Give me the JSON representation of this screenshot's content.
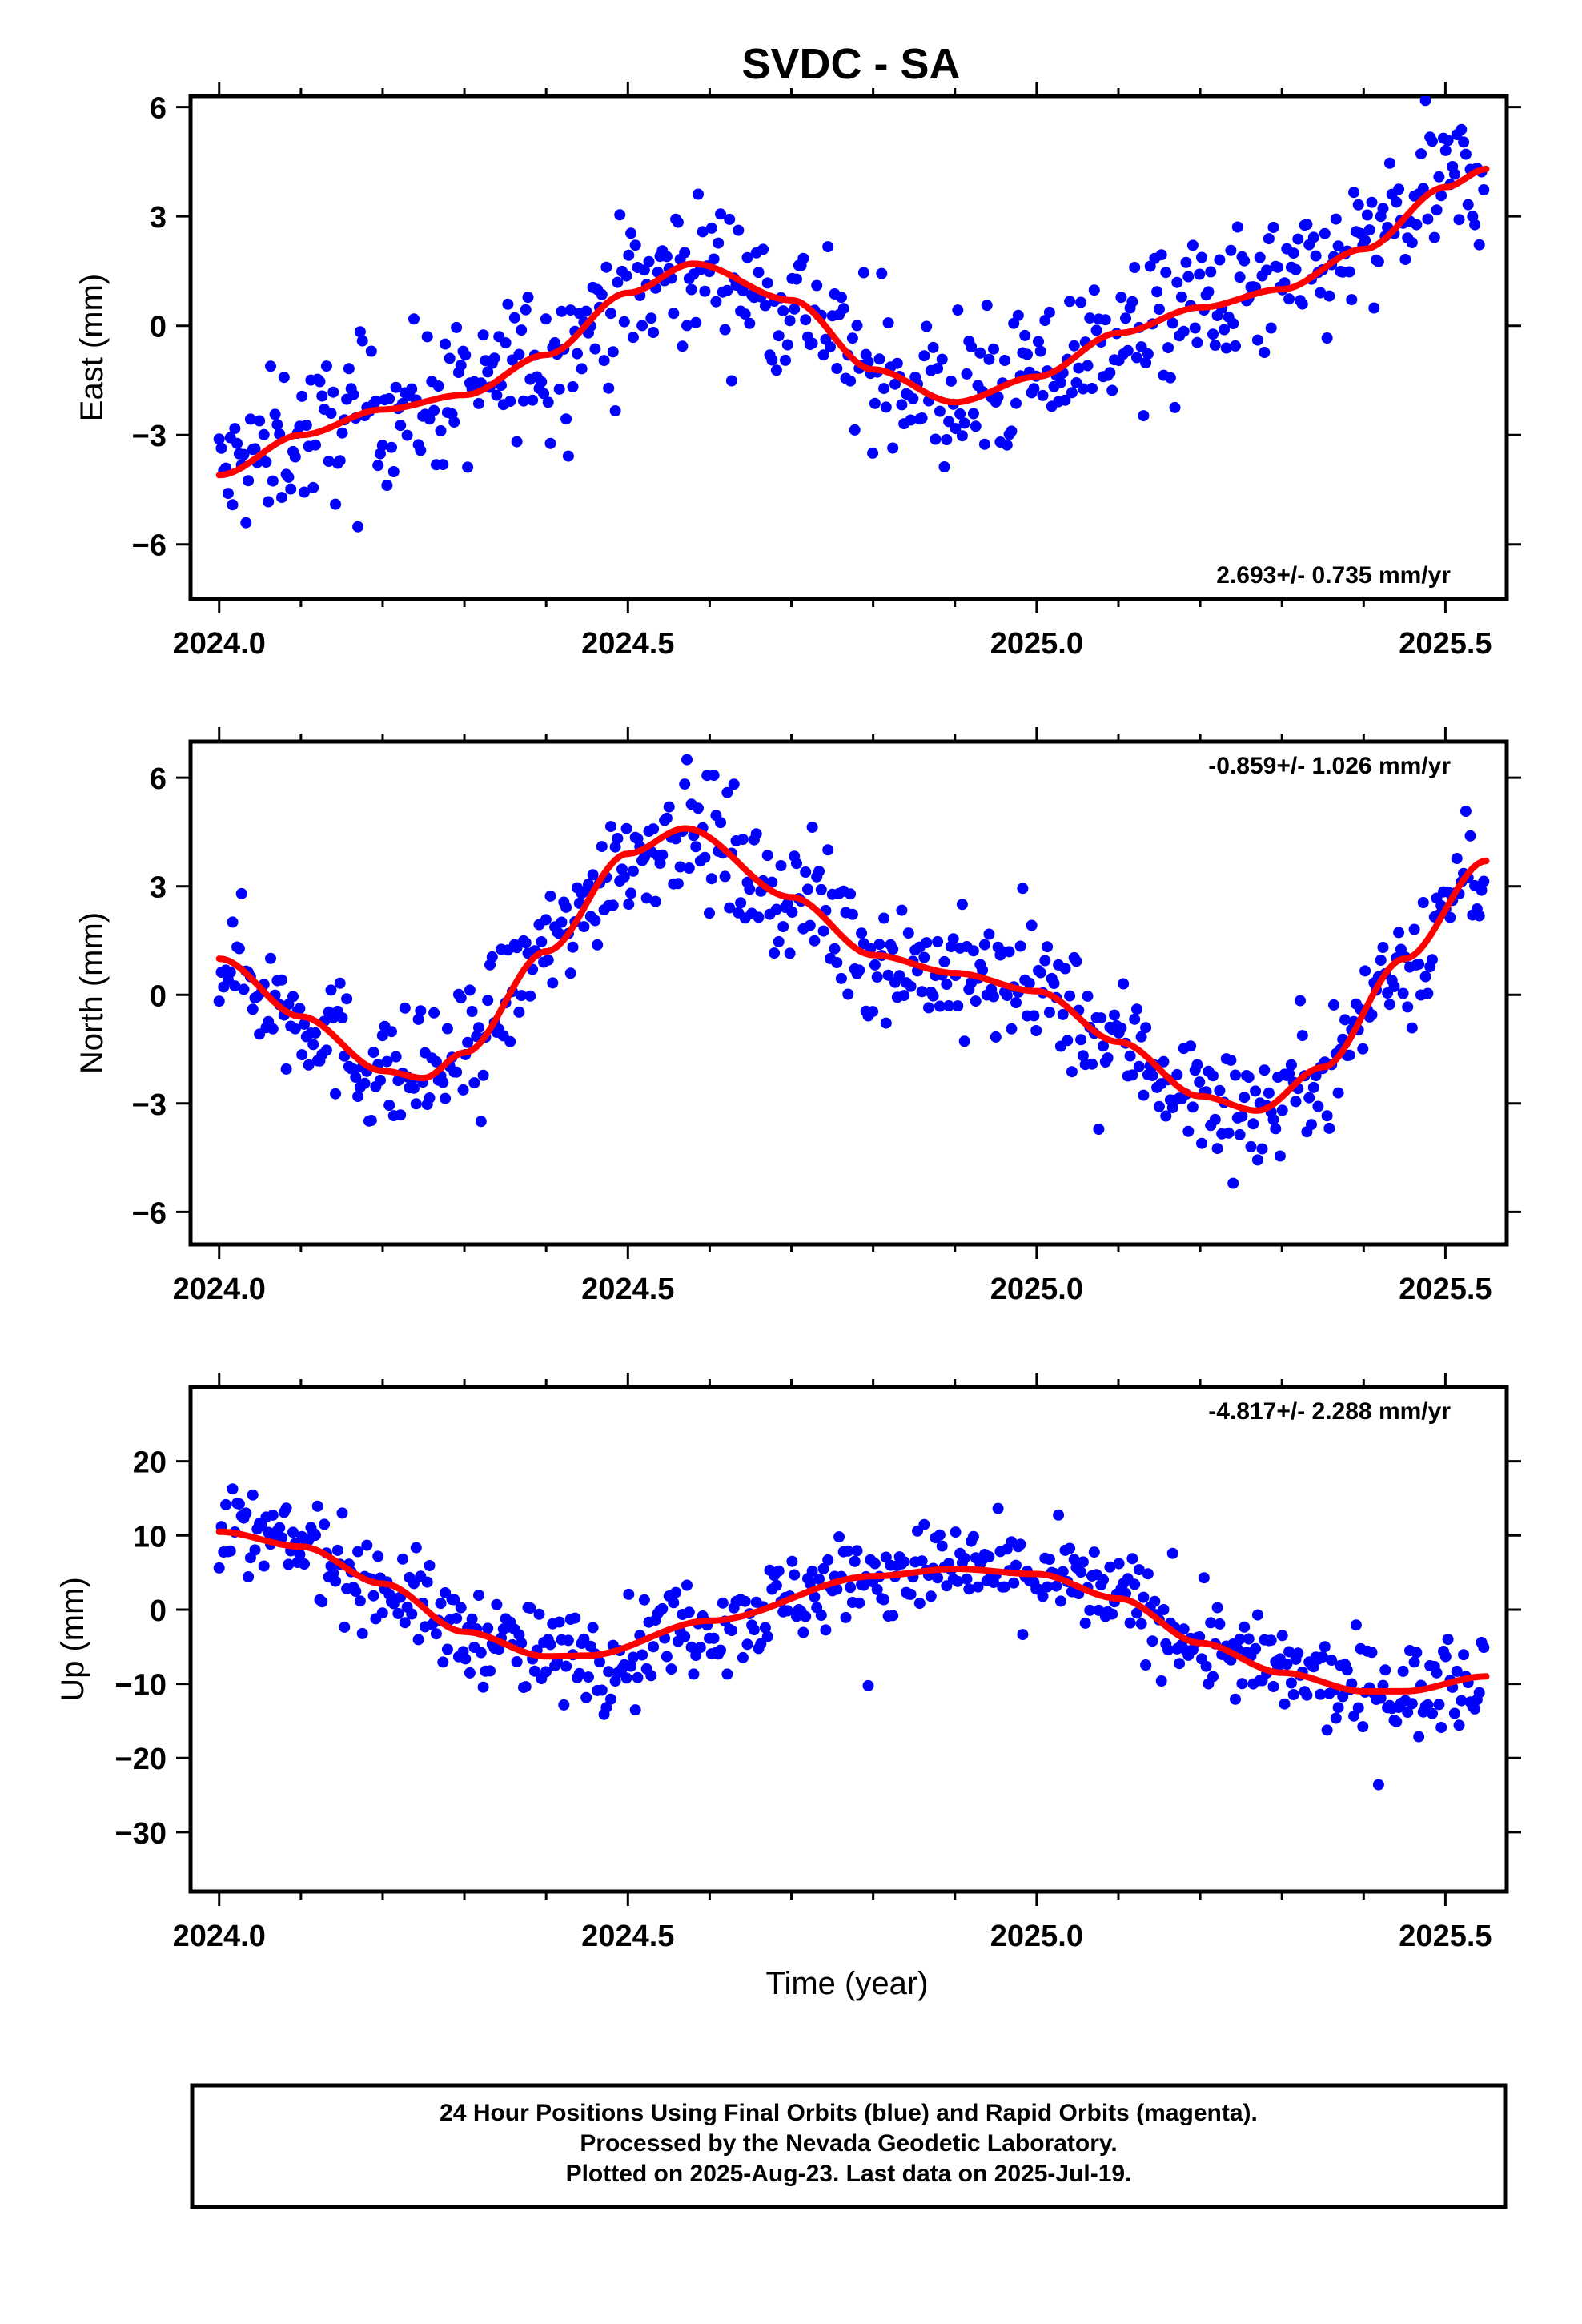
{
  "chart_data": {
    "type": "scatter",
    "title": "SVDC - SA",
    "xlabel": "Time (year)",
    "x_ticks": [
      "2024.0",
      "2024.5",
      "2025.0",
      "2025.5"
    ],
    "xlim": [
      2023.965,
      2025.575
    ],
    "colors": {
      "points": "#0000ff",
      "fit": "#ff0000",
      "frame": "#000000"
    },
    "panels": [
      {
        "name": "east",
        "ylabel": "East (mm)",
        "ylim": [
          -7.5,
          6.3
        ],
        "y_ticks": [
          6,
          3,
          0,
          -3,
          -6
        ],
        "y_tick_labels": [
          "6",
          "3",
          "0",
          "−3",
          "−6"
        ],
        "rate_text": "2.693+/- 0.735 mm/yr",
        "rate_position": "bottom-right",
        "fit": {
          "x": [
            2024.0,
            2024.1,
            2024.2,
            2024.3,
            2024.4,
            2024.5,
            2024.58,
            2024.7,
            2024.8,
            2024.9,
            2025.0,
            2025.1,
            2025.2,
            2025.3,
            2025.4,
            2025.5,
            2025.55
          ],
          "y": [
            -4.1,
            -3.0,
            -2.3,
            -1.9,
            -0.8,
            0.9,
            1.7,
            0.7,
            -1.2,
            -2.1,
            -1.4,
            -0.2,
            0.5,
            1.0,
            2.1,
            3.8,
            4.3
          ]
        }
      },
      {
        "name": "north",
        "ylabel": "North (mm)",
        "ylim": [
          -6.9,
          7.0
        ],
        "y_ticks": [
          6,
          3,
          0,
          -3,
          -6
        ],
        "y_tick_labels": [
          "6",
          "3",
          "0",
          "−3",
          "−6"
        ],
        "rate_text": "-0.859+/- 1.026 mm/yr",
        "rate_position": "top-right",
        "fit": {
          "x": [
            2024.0,
            2024.1,
            2024.2,
            2024.25,
            2024.3,
            2024.4,
            2024.5,
            2024.57,
            2024.7,
            2024.8,
            2024.9,
            2025.0,
            2025.1,
            2025.2,
            2025.27,
            2025.35,
            2025.45,
            2025.55
          ],
          "y": [
            1.0,
            -0.6,
            -2.1,
            -2.3,
            -1.6,
            1.2,
            3.9,
            4.6,
            2.7,
            1.1,
            0.6,
            0.1,
            -1.3,
            -2.8,
            -3.2,
            -2.0,
            1.0,
            3.7
          ]
        }
      },
      {
        "name": "up",
        "ylabel": "Up (mm)",
        "ylim": [
          -38,
          30
        ],
        "y_ticks": [
          20,
          10,
          0,
          -10,
          -20,
          -30
        ],
        "y_tick_labels": [
          "20",
          "10",
          "0",
          "−10",
          "−20",
          "−30"
        ],
        "rate_text": "-4.817+/- 2.288 mm/yr",
        "rate_position": "top-right",
        "fit": {
          "x": [
            2024.0,
            2024.1,
            2024.2,
            2024.3,
            2024.4,
            2024.45,
            2024.6,
            2024.8,
            2024.9,
            2025.0,
            2025.1,
            2025.2,
            2025.3,
            2025.4,
            2025.45,
            2025.55
          ],
          "y": [
            10.5,
            8.5,
            3.5,
            -3.0,
            -6.3,
            -6.2,
            -1.5,
            4.5,
            5.5,
            4.8,
            1.5,
            -4.5,
            -8.5,
            -11.0,
            -11.0,
            -9.0
          ]
        }
      }
    ]
  },
  "footer": {
    "line1": "24 Hour Positions Using Final Orbits (blue) and Rapid Orbits (magenta).",
    "line2": "Processed by the Nevada Geodetic Laboratory.",
    "line3": "Plotted on 2025-Aug-23. Last data on 2025-Jul-19."
  }
}
